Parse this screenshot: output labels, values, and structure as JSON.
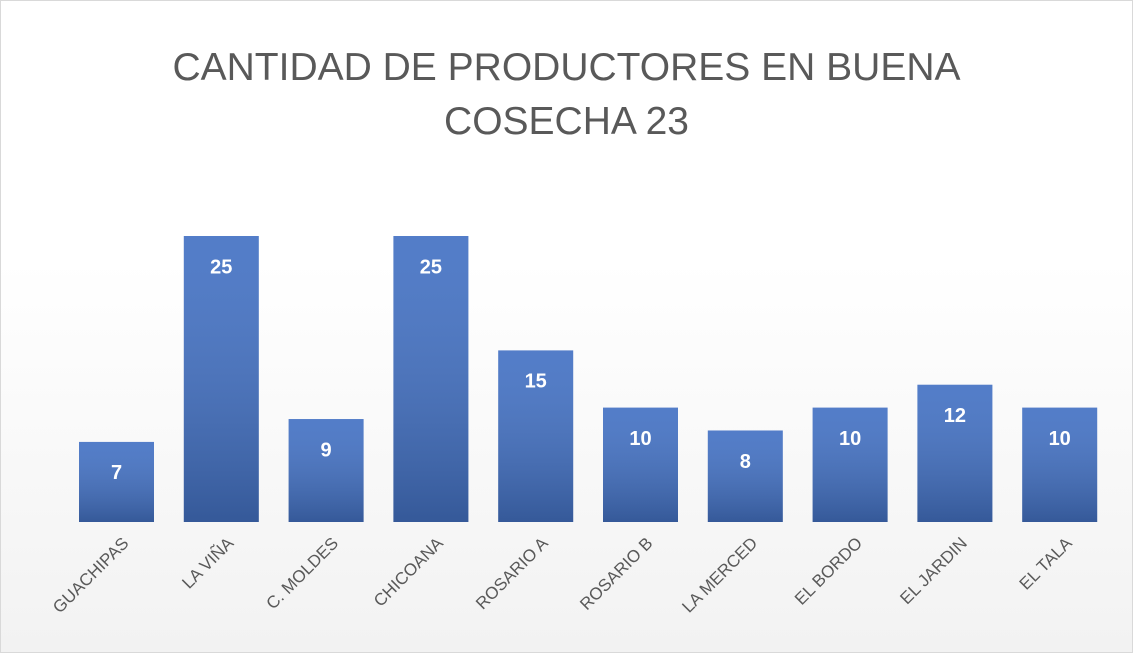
{
  "chart_data": {
    "type": "bar",
    "title": "CANTIDAD DE PRODUCTORES EN BUENA COSECHA 23",
    "categories": [
      "GUACHIPAS",
      "LA VIÑA",
      "C. MOLDES",
      "CHICOANA",
      "ROSARIO A",
      "ROSARIO B",
      "LA MERCED",
      "EL BORDO",
      "EL JARDIN",
      "EL TALA"
    ],
    "values": [
      7,
      25,
      9,
      25,
      15,
      10,
      8,
      10,
      12,
      10
    ],
    "color": "#4472c4",
    "data_labels": true
  }
}
